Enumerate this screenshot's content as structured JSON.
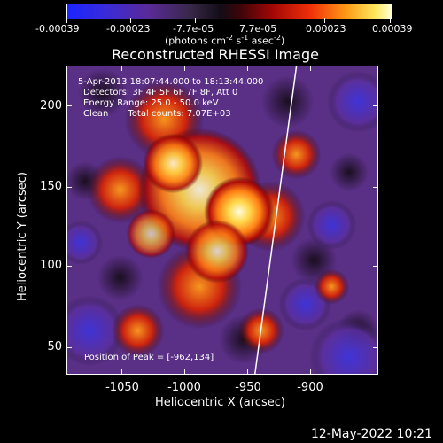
{
  "colorbar": {
    "tick_labels": [
      "-0.00039",
      "-0.00023",
      "-7.7e-05",
      "7.7e-05",
      "0.00023",
      "0.00039"
    ],
    "units_label": "(photons cm",
    "units_exp1": "-2",
    "units_mid": " s",
    "units_exp2": "-1",
    "units_end": " asec",
    "units_exp3": "-2",
    "units_close": ")"
  },
  "plot": {
    "title": "Reconstructed RHESSI Image",
    "x_axis_title": "Heliocentric X (arcsec)",
    "y_axis_title": "Heliocentric Y (arcsec)",
    "x_ticks": [
      "-1050",
      "-1000",
      "-950",
      "-900"
    ],
    "y_ticks": [
      "200",
      "150",
      "100",
      "50"
    ],
    "overlay_line1": "5-Apr-2013 18:07:44.000 to 18:13:44.000",
    "overlay_line2": "Detectors: 3F 4F 5F 6F 7F 8F, Att 0",
    "overlay_line3": "Energy Range: 25.0 - 50.0 keV",
    "overlay_line4_a": "Clean",
    "overlay_line4_b": "Total counts: 7.07E+03",
    "peak_label": "Position of Peak = [-962,134]",
    "colors": {
      "limb_line": "#ffffff",
      "background": "#000000"
    }
  },
  "footer": {
    "timestamp": "12-May-2022 10:21"
  }
}
